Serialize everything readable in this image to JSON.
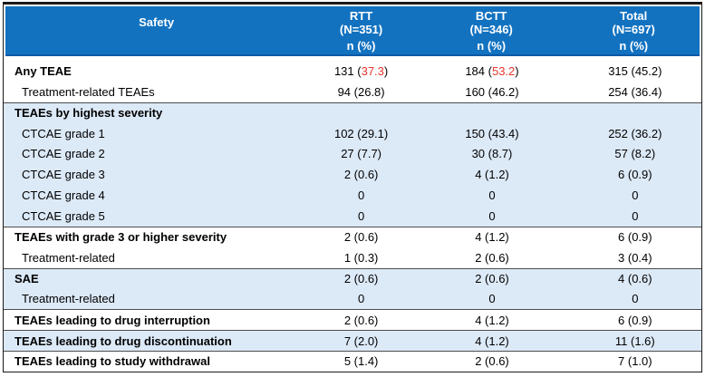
{
  "table": {
    "title_col": "Safety",
    "stat_label": "n (%)",
    "columns": [
      {
        "name": "RTT",
        "n": "(N=351)"
      },
      {
        "name": "BCTT",
        "n": "(N=346)"
      },
      {
        "name": "Total",
        "n": "(N=697)"
      }
    ],
    "rows": [
      {
        "label": "Any TEAE",
        "bold": true,
        "indent": false,
        "shaded": false,
        "sep": false,
        "cells": [
          {
            "text": "131 (37.3)",
            "red": "37.3"
          },
          {
            "text": "184 (53.2)",
            "red": "53.2"
          },
          {
            "text": "315 (45.2)"
          }
        ]
      },
      {
        "label": "Treatment-related TEAEs",
        "bold": false,
        "indent": true,
        "shaded": false,
        "sep": false,
        "cells": [
          {
            "text": "94 (26.8)"
          },
          {
            "text": "160 (46.2)"
          },
          {
            "text": "254 (36.4)"
          }
        ]
      },
      {
        "label": "TEAEs by highest severity",
        "bold": true,
        "indent": false,
        "shaded": true,
        "sep": true,
        "cells": [
          {
            "text": ""
          },
          {
            "text": ""
          },
          {
            "text": ""
          }
        ]
      },
      {
        "label": "CTCAE grade 1",
        "bold": false,
        "indent": true,
        "shaded": true,
        "sep": false,
        "cells": [
          {
            "text": "102 (29.1)"
          },
          {
            "text": "150 (43.4)"
          },
          {
            "text": "252 (36.2)"
          }
        ]
      },
      {
        "label": "CTCAE grade 2",
        "bold": false,
        "indent": true,
        "shaded": true,
        "sep": false,
        "cells": [
          {
            "text": "27 (7.7)"
          },
          {
            "text": "30 (8.7)"
          },
          {
            "text": "57 (8.2)"
          }
        ]
      },
      {
        "label": "CTCAE grade 3",
        "bold": false,
        "indent": true,
        "shaded": true,
        "sep": false,
        "cells": [
          {
            "text": "2 (0.6)"
          },
          {
            "text": "4 (1.2)"
          },
          {
            "text": "6 (0.9)"
          }
        ]
      },
      {
        "label": "CTCAE grade 4",
        "bold": false,
        "indent": true,
        "shaded": true,
        "sep": false,
        "cells": [
          {
            "text": "0"
          },
          {
            "text": "0"
          },
          {
            "text": "0"
          }
        ]
      },
      {
        "label": "CTCAE grade 5",
        "bold": false,
        "indent": true,
        "shaded": true,
        "sep": false,
        "cells": [
          {
            "text": "0"
          },
          {
            "text": "0"
          },
          {
            "text": "0"
          }
        ]
      },
      {
        "label": "TEAEs with grade 3 or higher severity",
        "bold": true,
        "indent": false,
        "shaded": false,
        "sep": true,
        "cells": [
          {
            "text": "2 (0.6)"
          },
          {
            "text": "4 (1.2)"
          },
          {
            "text": "6 (0.9)"
          }
        ]
      },
      {
        "label": "Treatment-related",
        "bold": false,
        "indent": true,
        "shaded": false,
        "sep": false,
        "cells": [
          {
            "text": "1 (0.3)"
          },
          {
            "text": "2 (0.6)"
          },
          {
            "text": "3 (0.4)"
          }
        ]
      },
      {
        "label": "SAE",
        "bold": true,
        "indent": false,
        "shaded": true,
        "sep": true,
        "cells": [
          {
            "text": "2 (0.6)"
          },
          {
            "text": "2 (0.6)"
          },
          {
            "text": "4 (0.6)"
          }
        ]
      },
      {
        "label": "Treatment-related",
        "bold": false,
        "indent": true,
        "shaded": true,
        "sep": false,
        "cells": [
          {
            "text": "0"
          },
          {
            "text": "0"
          },
          {
            "text": "0"
          }
        ]
      },
      {
        "label": "TEAEs leading to drug interruption",
        "bold": true,
        "indent": false,
        "shaded": false,
        "sep": true,
        "cells": [
          {
            "text": "2 (0.6)"
          },
          {
            "text": "4 (1.2)"
          },
          {
            "text": "6 (0.9)"
          }
        ]
      },
      {
        "label": "TEAEs leading to drug discontinuation",
        "bold": true,
        "indent": false,
        "shaded": true,
        "sep": true,
        "cells": [
          {
            "text": "7 (2.0)"
          },
          {
            "text": "4 (1.2)"
          },
          {
            "text": "11 (1.6)"
          }
        ]
      },
      {
        "label": "TEAEs leading to study withdrawal",
        "bold": true,
        "indent": false,
        "shaded": false,
        "sep": true,
        "cells": [
          {
            "text": "5 (1.4)"
          },
          {
            "text": "2 (0.6)"
          },
          {
            "text": "7 (1.0)"
          }
        ]
      }
    ],
    "colors": {
      "header_bg": "#1272c0",
      "header_edge": "#0a5aa5",
      "shaded_row": "#dce9f7",
      "highlight_red": "#e8332a",
      "border": "#1a1a1a",
      "separator": "#4d4d4d"
    }
  }
}
